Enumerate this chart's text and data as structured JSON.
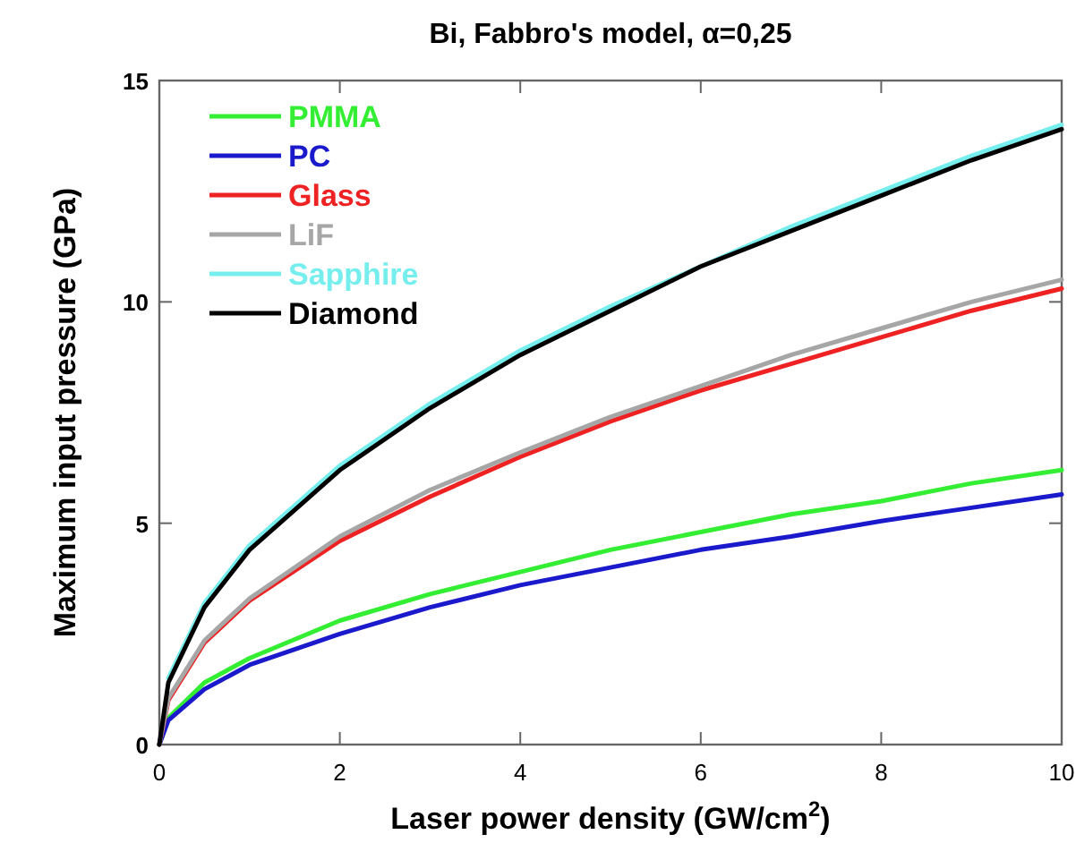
{
  "chart_data": {
    "type": "line",
    "title": "Bi, Fabbro's model, α=0,25",
    "xlabel": "Laser power density (GW/cm$^{2}$)",
    "ylabel": "Maximum input pressure (GPa)",
    "x": [
      0,
      0.1,
      0.5,
      1,
      2,
      3,
      4,
      5,
      6,
      7,
      8,
      9,
      10
    ],
    "xlim": [
      0,
      10
    ],
    "xticks": [
      0,
      2,
      4,
      6,
      8,
      10
    ],
    "ylim": [
      0,
      15
    ],
    "yticks": [
      0,
      5,
      10,
      15
    ],
    "grid": false,
    "legend": "top left",
    "marker": "none",
    "line_style": "solid",
    "series": [
      {
        "name": "PMMA",
        "color": "#33ee33",
        "values": [
          0,
          0.6,
          1.4,
          1.95,
          2.8,
          3.4,
          3.9,
          4.4,
          4.8,
          5.2,
          5.5,
          5.9,
          6.2
        ]
      },
      {
        "name": "PC",
        "color": "#1a1acc",
        "values": [
          0,
          0.55,
          1.25,
          1.8,
          2.5,
          3.1,
          3.6,
          4.0,
          4.4,
          4.7,
          5.05,
          5.35,
          5.65
        ]
      },
      {
        "name": "Glass",
        "color": "#ee2222",
        "values": [
          0,
          1.0,
          2.3,
          3.25,
          4.6,
          5.6,
          6.5,
          7.3,
          8.0,
          8.6,
          9.2,
          9.8,
          10.3
        ]
      },
      {
        "name": "LiF",
        "color": "#a6a6a6",
        "values": [
          0,
          1.05,
          2.35,
          3.3,
          4.7,
          5.75,
          6.6,
          7.4,
          8.1,
          8.8,
          9.4,
          10.0,
          10.5
        ]
      },
      {
        "name": "Sapphire",
        "color": "#77eeee",
        "values": [
          null,
          1.5,
          3.2,
          4.5,
          6.3,
          7.7,
          8.9,
          9.9,
          10.8,
          11.7,
          12.5,
          13.3,
          14.0
        ]
      },
      {
        "name": "Diamond",
        "color": "#000000",
        "values": [
          0,
          1.4,
          3.1,
          4.4,
          6.2,
          7.6,
          8.8,
          9.8,
          10.8,
          11.6,
          12.4,
          13.2,
          13.9
        ]
      }
    ]
  }
}
